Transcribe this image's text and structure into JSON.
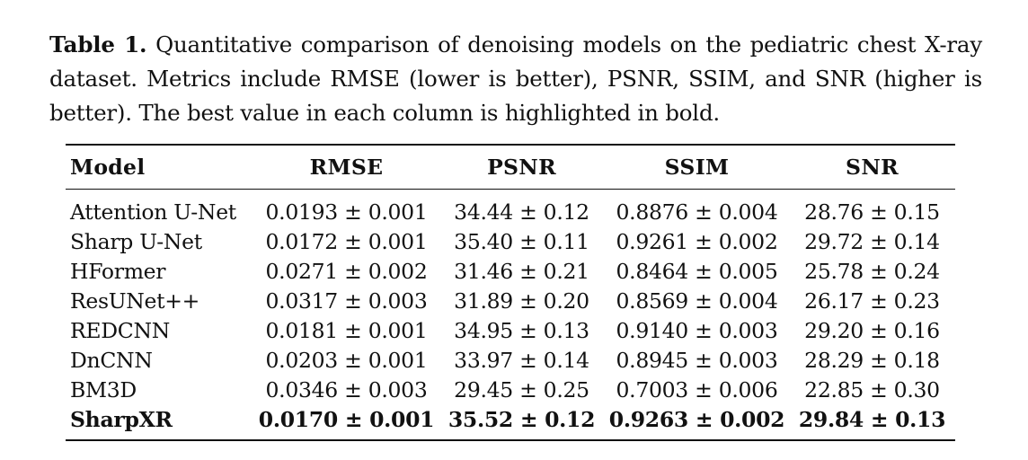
{
  "caption": {
    "label": "Table 1.",
    "text": "Quantitative comparison of denoising models on the pediatric chest X-ray dataset. Metrics include RMSE (lower is better), PSNR, SSIM, and SNR (higher is better). The best value in each column is highlighted in bold."
  },
  "table": {
    "headers": [
      "Model",
      "RMSE",
      "PSNR",
      "SSIM",
      "SNR"
    ],
    "rows": [
      [
        "Attention U-Net",
        "0.0193 ± 0.001",
        "34.44 ± 0.12",
        "0.8876 ± 0.004",
        "28.76 ± 0.15"
      ],
      [
        "Sharp U-Net",
        "0.0172 ± 0.001",
        "35.40 ± 0.11",
        "0.9261 ± 0.002",
        "29.72 ± 0.14"
      ],
      [
        "HFormer",
        "0.0271 ± 0.002",
        "31.46 ± 0.21",
        "0.8464 ± 0.005",
        "25.78 ± 0.24"
      ],
      [
        "ResUNet++",
        "0.0317 ± 0.003",
        "31.89 ± 0.20",
        "0.8569 ± 0.004",
        "26.17 ± 0.23"
      ],
      [
        "REDCNN",
        "0.0181 ± 0.001",
        "34.95 ± 0.13",
        "0.9140 ± 0.003",
        "29.20 ± 0.16"
      ],
      [
        "DnCNN",
        "0.0203 ± 0.001",
        "33.97 ± 0.14",
        "0.8945 ± 0.003",
        "28.29 ± 0.18"
      ],
      [
        "BM3D",
        "0.0346 ± 0.003",
        "29.45 ± 0.25",
        "0.7003 ± 0.006",
        "22.85 ± 0.30"
      ],
      [
        "SharpXR",
        "0.0170 ± 0.001",
        "35.52 ± 0.12",
        "0.9263 ± 0.002",
        "29.84 ± 0.13"
      ]
    ],
    "best_row": 7
  }
}
